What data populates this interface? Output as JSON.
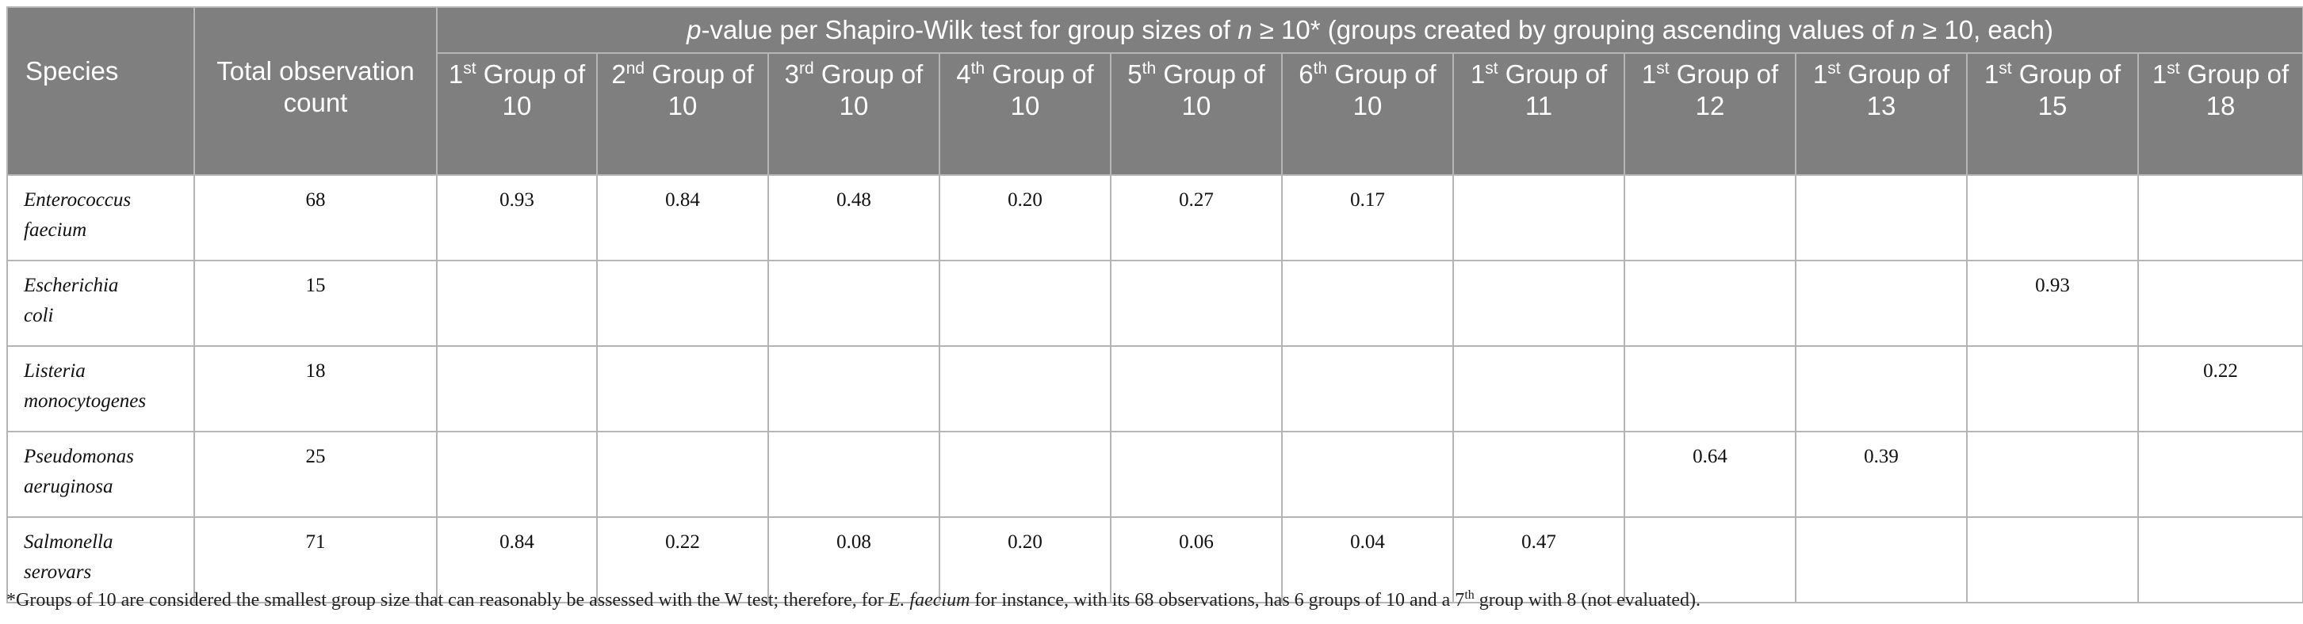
{
  "table": {
    "species_header": "Species",
    "total_header": "Total observation count",
    "super_header_parts": {
      "p": "p",
      "text1": "-value per Shapiro-Wilk test for group sizes of ",
      "n1": "n",
      "text2": " ≥ 10* (groups created by grouping ascending values of ",
      "n2": "n",
      "text3": " ≥ 10, each)"
    },
    "group_columns": [
      {
        "ordinal": "1",
        "suffix": "st",
        "rest": "Group of 10"
      },
      {
        "ordinal": "2",
        "suffix": "nd",
        "rest": "Group of 10"
      },
      {
        "ordinal": "3",
        "suffix": "rd",
        "rest": "Group of 10"
      },
      {
        "ordinal": "4",
        "suffix": "th",
        "rest": "Group of 10"
      },
      {
        "ordinal": "5",
        "suffix": "th",
        "rest": "Group of 10"
      },
      {
        "ordinal": "6",
        "suffix": "th",
        "rest": "Group of 10"
      },
      {
        "ordinal": "1",
        "suffix": "st",
        "rest": "Group of 11"
      },
      {
        "ordinal": "1",
        "suffix": "st",
        "rest": "Group of 12"
      },
      {
        "ordinal": "1",
        "suffix": "st",
        "rest": "Group of 13"
      },
      {
        "ordinal": "1",
        "suffix": "st",
        "rest": "Group of 15"
      },
      {
        "ordinal": "1",
        "suffix": "st",
        "rest": "Group of 18"
      }
    ],
    "rows": [
      {
        "species": [
          "Enterococcus",
          "faecium"
        ],
        "total": "68",
        "values": [
          "0.93",
          "0.84",
          "0.48",
          "0.20",
          "0.27",
          "0.17",
          "",
          "",
          "",
          "",
          ""
        ]
      },
      {
        "species": [
          "Escherichia",
          "coli"
        ],
        "total": "15",
        "values": [
          "",
          "",
          "",
          "",
          "",
          "",
          "",
          "",
          "",
          "0.93",
          ""
        ]
      },
      {
        "species": [
          "Listeria",
          "monocytogenes"
        ],
        "total": "18",
        "values": [
          "",
          "",
          "",
          "",
          "",
          "",
          "",
          "",
          "",
          "",
          "0.22"
        ]
      },
      {
        "species": [
          "Pseudomonas",
          "aeruginosa"
        ],
        "total": "25",
        "values": [
          "",
          "",
          "",
          "",
          "",
          "",
          "",
          "0.64",
          "0.39",
          "",
          ""
        ]
      },
      {
        "species": [
          "Salmonella",
          "serovars"
        ],
        "total": "71",
        "values": [
          "0.84",
          "0.22",
          "0.08",
          "0.20",
          "0.06",
          "0.04",
          "0.47",
          "",
          "",
          "",
          ""
        ]
      }
    ]
  },
  "footnote": {
    "part1": "*Groups of 10 are considered the smallest group size that can reasonably be assessed with the W test; therefore, for ",
    "species": "E. faecium",
    "part2": " for instance, with its 68 observations, has 6 groups of 10 and a 7",
    "sup": "th",
    "part3": " group with 8 (not evaluated)."
  }
}
